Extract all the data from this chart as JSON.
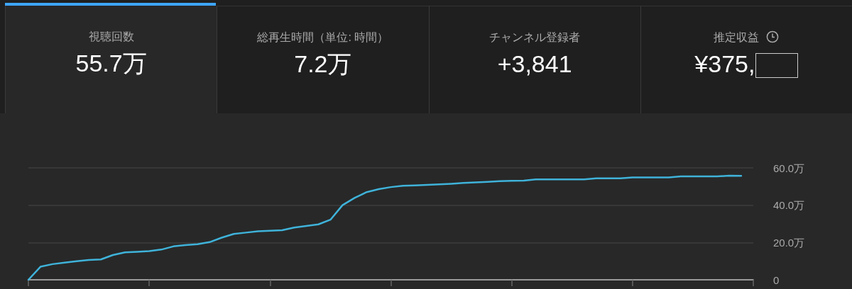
{
  "chart_data": [
    {
      "type": "other",
      "title": "視聴回数",
      "annotations": [
        "55.7万"
      ]
    },
    {
      "type": "other",
      "title": "総再生時間（単位: 時間）",
      "annotations": [
        "7.2万"
      ]
    },
    {
      "type": "other",
      "title": "チャンネル登録者",
      "annotations": [
        "+3,841"
      ]
    },
    {
      "type": "other",
      "title": "推定収益",
      "annotations": [
        "¥375,"
      ]
    },
    {
      "type": "line",
      "categories": [
        null,
        null,
        null,
        null,
        null,
        null,
        null,
        null,
        null,
        null,
        null,
        null,
        null,
        null,
        null,
        null,
        null,
        null,
        null,
        null,
        null,
        null,
        null,
        null,
        null,
        null,
        null,
        null,
        null,
        null,
        null,
        null,
        null,
        null,
        null,
        null,
        null,
        null,
        null,
        null,
        null,
        null,
        null,
        null,
        null,
        null,
        null,
        null,
        null,
        null,
        null,
        null,
        null,
        null,
        null,
        null,
        null,
        null,
        null,
        null,
        null
      ],
      "series": [
        {
          "color": "#3fb3da",
          "values": [
            0,
            7.0,
            8.4,
            9.2,
            10.0,
            10.6,
            10.9,
            13.3,
            14.7,
            15.0,
            15.4,
            16.2,
            17.9,
            18.6,
            19.1,
            20.2,
            22.6,
            24.6,
            25.3,
            26.0,
            26.3,
            26.6,
            28.0,
            28.9,
            29.7,
            32.2,
            40.0,
            43.9,
            47.0,
            48.6,
            49.7,
            50.4,
            50.6,
            50.9,
            51.2,
            51.5,
            51.9,
            52.2,
            52.5,
            52.9,
            53.1,
            53.2,
            53.8,
            53.8,
            53.8,
            53.8,
            53.8,
            54.4,
            54.4,
            54.4,
            54.9,
            54.9,
            54.9,
            54.9,
            55.4,
            55.4,
            55.4,
            55.4,
            55.8,
            55.7,
            null
          ]
        }
      ],
      "ylim": [
        0,
        60
      ],
      "yticks": [
        0,
        {
          "value": 20,
          "label": "20.0万"
        },
        {
          "value": 40,
          "label": "40.0万"
        },
        {
          "value": 60,
          "label": "60.0万"
        }
      ],
      "grid": "y",
      "tick_labels": "y",
      "marker": "none",
      "line_style": "solid"
    }
  ]
}
